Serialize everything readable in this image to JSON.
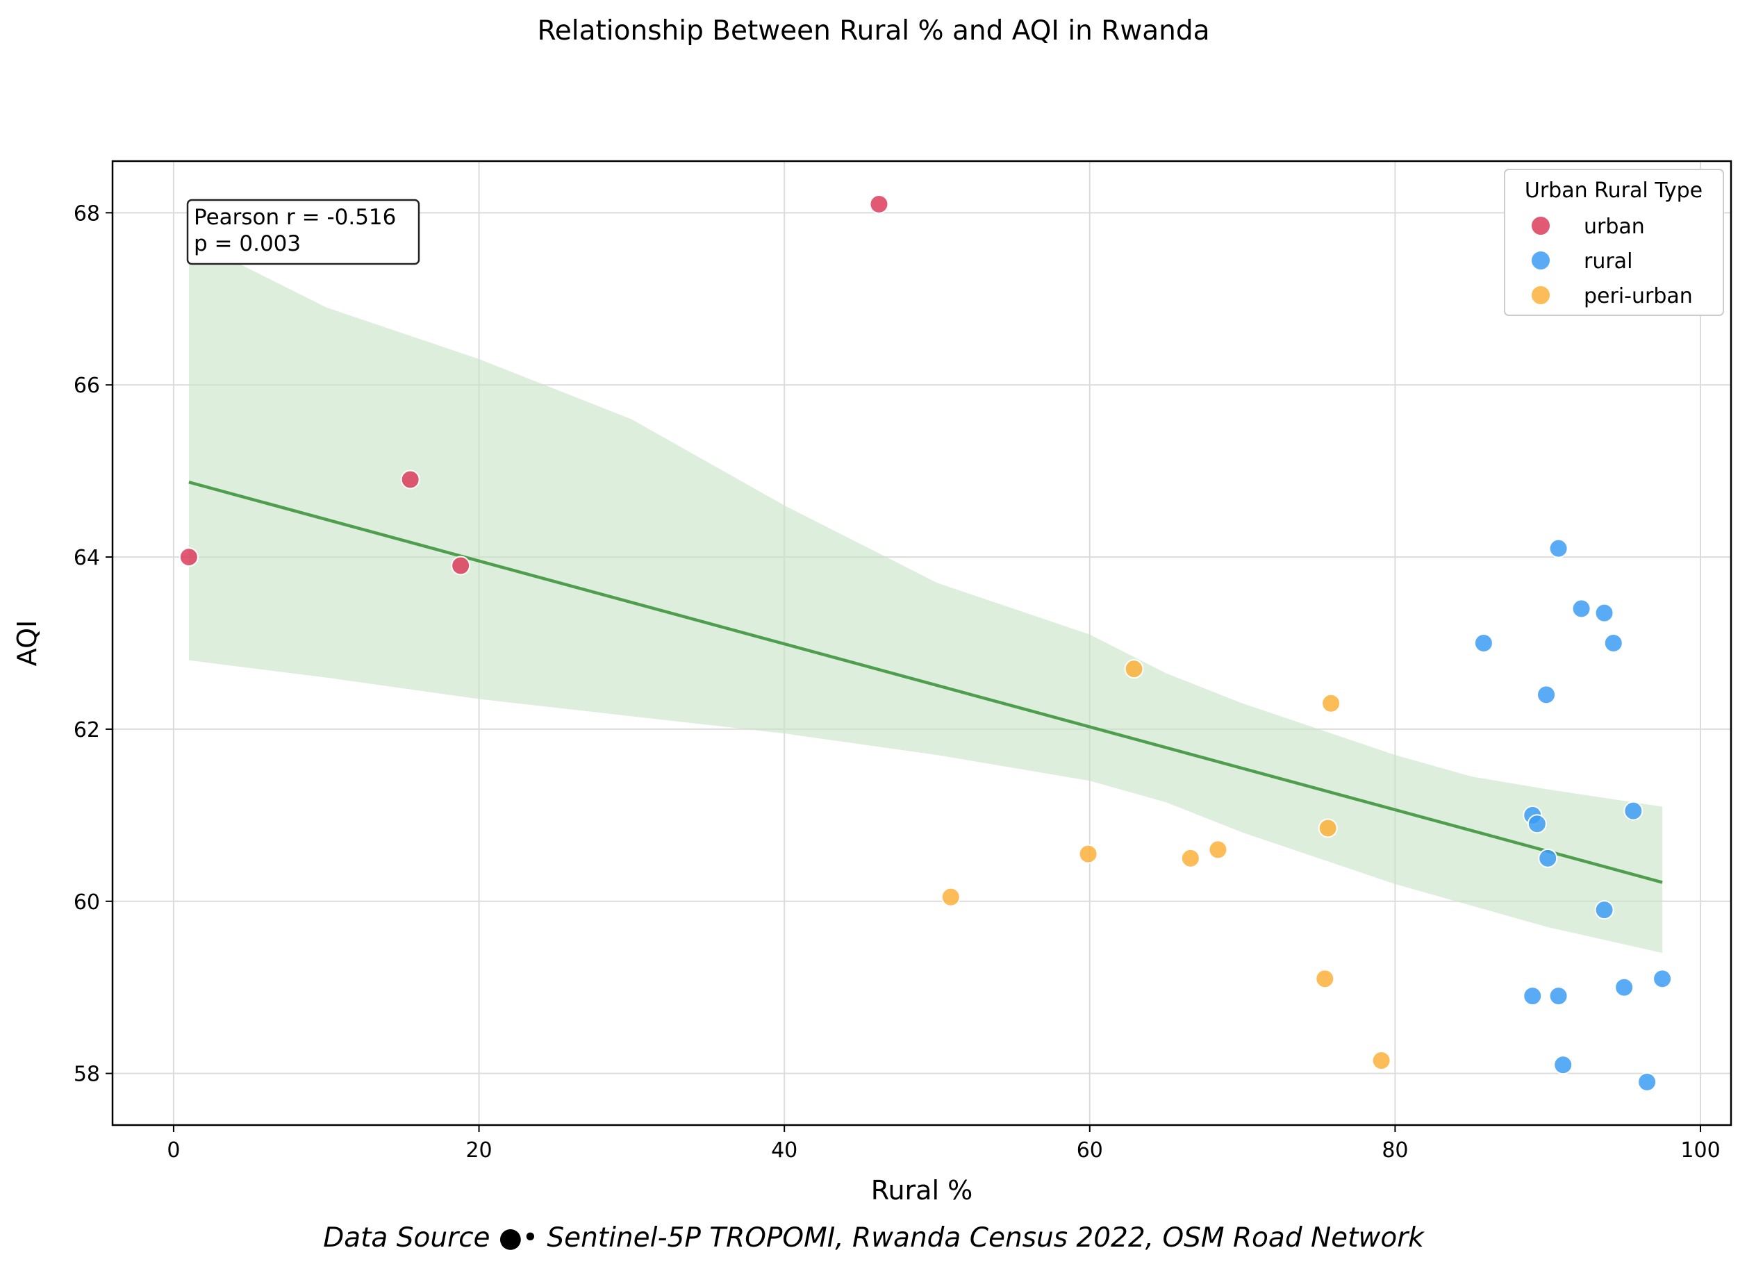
{
  "chart_data": {
    "type": "scatter",
    "title": "Relationship Between Rural % and AQI in Rwanda",
    "xlabel": "Rural %",
    "ylabel": "AQI",
    "xlim": [
      -4,
      102
    ],
    "ylim": [
      57.4,
      68.6
    ],
    "xticks": [
      0,
      20,
      40,
      60,
      80,
      100
    ],
    "yticks": [
      58,
      60,
      62,
      64,
      66,
      68
    ],
    "grid": true,
    "legend": {
      "title": "Urban Rural Type",
      "placement": "top-right"
    },
    "annotation": {
      "line1": "Pearson r = -0.516",
      "line2": "p = 0.003",
      "placement": "top-left"
    },
    "source_note": "Data Source ●• Sentinel-5P TROPOMI, Rwanda Census 2022, OSM Road Network",
    "series": [
      {
        "name": "urban",
        "color": "#dc3c5a",
        "points": [
          [
            1.0,
            64.0
          ],
          [
            15.5,
            64.9
          ],
          [
            18.8,
            63.9
          ],
          [
            46.2,
            68.1
          ]
        ]
      },
      {
        "name": "rural",
        "color": "#3c9cf5",
        "points": [
          [
            85.8,
            63.0
          ],
          [
            89.9,
            62.4
          ],
          [
            90.7,
            64.1
          ],
          [
            92.2,
            63.4
          ],
          [
            93.7,
            63.35
          ],
          [
            94.3,
            63.0
          ],
          [
            89.0,
            61.0
          ],
          [
            89.3,
            60.9
          ],
          [
            90.0,
            60.5
          ],
          [
            95.6,
            61.05
          ],
          [
            93.7,
            59.9
          ],
          [
            95.0,
            59.0
          ],
          [
            97.5,
            59.1
          ],
          [
            89.0,
            58.9
          ],
          [
            90.7,
            58.9
          ],
          [
            91.0,
            58.1
          ],
          [
            96.5,
            57.9
          ]
        ]
      },
      {
        "name": "peri-urban",
        "color": "#fbb03b",
        "points": [
          [
            50.9,
            60.05
          ],
          [
            59.9,
            60.55
          ],
          [
            62.9,
            62.7
          ],
          [
            66.6,
            60.5
          ],
          [
            68.4,
            60.6
          ],
          [
            75.6,
            60.85
          ],
          [
            75.8,
            62.3
          ],
          [
            75.4,
            59.1
          ],
          [
            79.1,
            58.15
          ]
        ]
      }
    ],
    "regression": {
      "color": "#4e9e4e",
      "band_color": "#c6e2c6",
      "line": [
        [
          1.0,
          64.87
        ],
        [
          97.5,
          60.22
        ]
      ],
      "band_upper": [
        [
          1.0,
          67.7
        ],
        [
          10.0,
          66.9
        ],
        [
          20.0,
          66.3
        ],
        [
          30.0,
          65.6
        ],
        [
          40.0,
          64.6
        ],
        [
          50.0,
          63.7
        ],
        [
          60.0,
          63.1
        ],
        [
          65.0,
          62.65
        ],
        [
          70.0,
          62.3
        ],
        [
          75.0,
          62.0
        ],
        [
          80.0,
          61.7
        ],
        [
          85.0,
          61.45
        ],
        [
          90.0,
          61.3
        ],
        [
          97.5,
          61.1
        ]
      ],
      "band_lower": [
        [
          1.0,
          62.8
        ],
        [
          10.0,
          62.6
        ],
        [
          20.0,
          62.35
        ],
        [
          30.0,
          62.15
        ],
        [
          40.0,
          61.95
        ],
        [
          50.0,
          61.7
        ],
        [
          60.0,
          61.4
        ],
        [
          65.0,
          61.15
        ],
        [
          70.0,
          60.8
        ],
        [
          75.0,
          60.5
        ],
        [
          80.0,
          60.2
        ],
        [
          85.0,
          59.95
        ],
        [
          90.0,
          59.7
        ],
        [
          97.5,
          59.4
        ]
      ]
    }
  }
}
